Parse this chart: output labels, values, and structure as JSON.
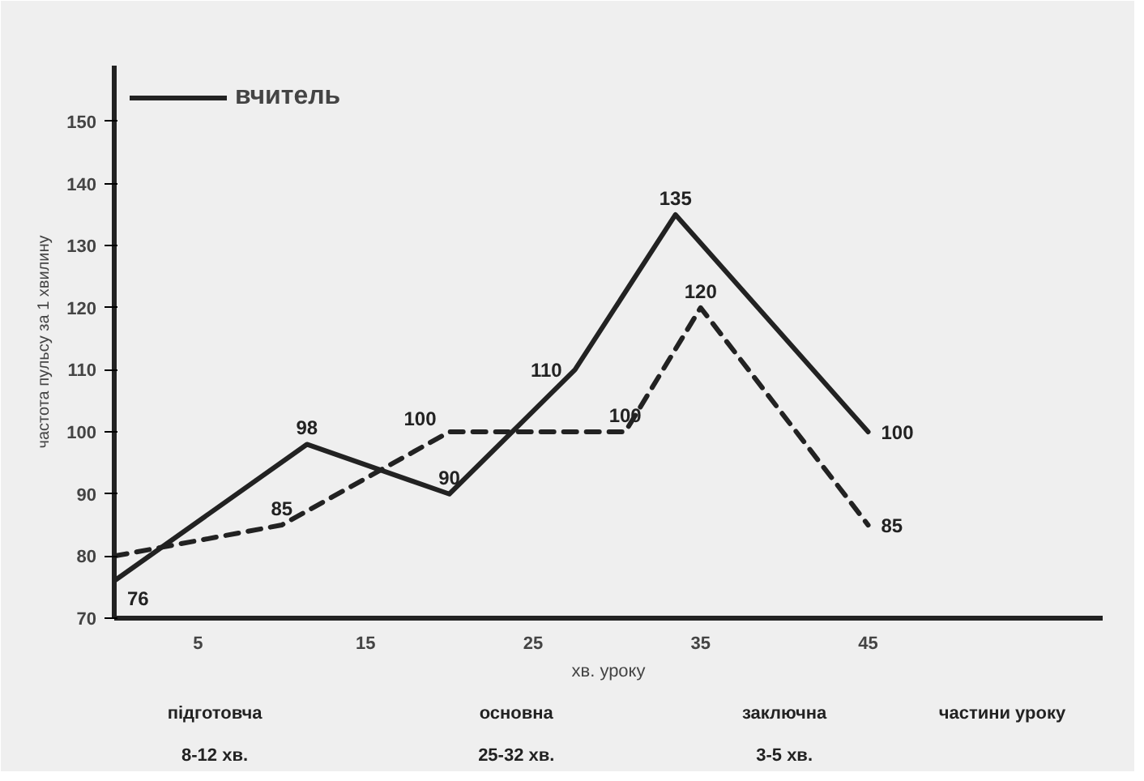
{
  "chart_data": {
    "type": "line",
    "xlabel": "хв. уроку",
    "ylabel": "частота пульсу за 1 хвилину",
    "xlim": [
      0,
      59
    ],
    "ylim": [
      70,
      159
    ],
    "xticks": [
      5,
      15,
      25,
      35,
      45
    ],
    "yticks": [
      70,
      80,
      90,
      100,
      110,
      120,
      130,
      140,
      150
    ],
    "grid": false,
    "legend": "top left",
    "marker": "none",
    "series": [
      {
        "name": "вчитель",
        "color": "#222222",
        "line_style": "solid",
        "x": [
          0,
          11.5,
          20,
          27.5,
          33.5,
          45
        ],
        "values": [
          76,
          98,
          90,
          110,
          135,
          100
        ],
        "value_labels": [
          "76",
          "98",
          "90",
          "110",
          "135",
          "100"
        ]
      },
      {
        "color": "#222222",
        "line_style": "dashed",
        "x": [
          0,
          10,
          20,
          30.5,
          35,
          45
        ],
        "values": [
          80,
          85,
          100,
          100,
          120,
          85
        ],
        "value_labels": [
          null,
          "85",
          "100",
          "100",
          "120",
          "85"
        ]
      }
    ],
    "annotations": [
      "підготовча",
      "8-12 хв.",
      "основна",
      "25-32 хв.",
      "заключна",
      "3-5 хв.",
      "частини уроку"
    ]
  }
}
